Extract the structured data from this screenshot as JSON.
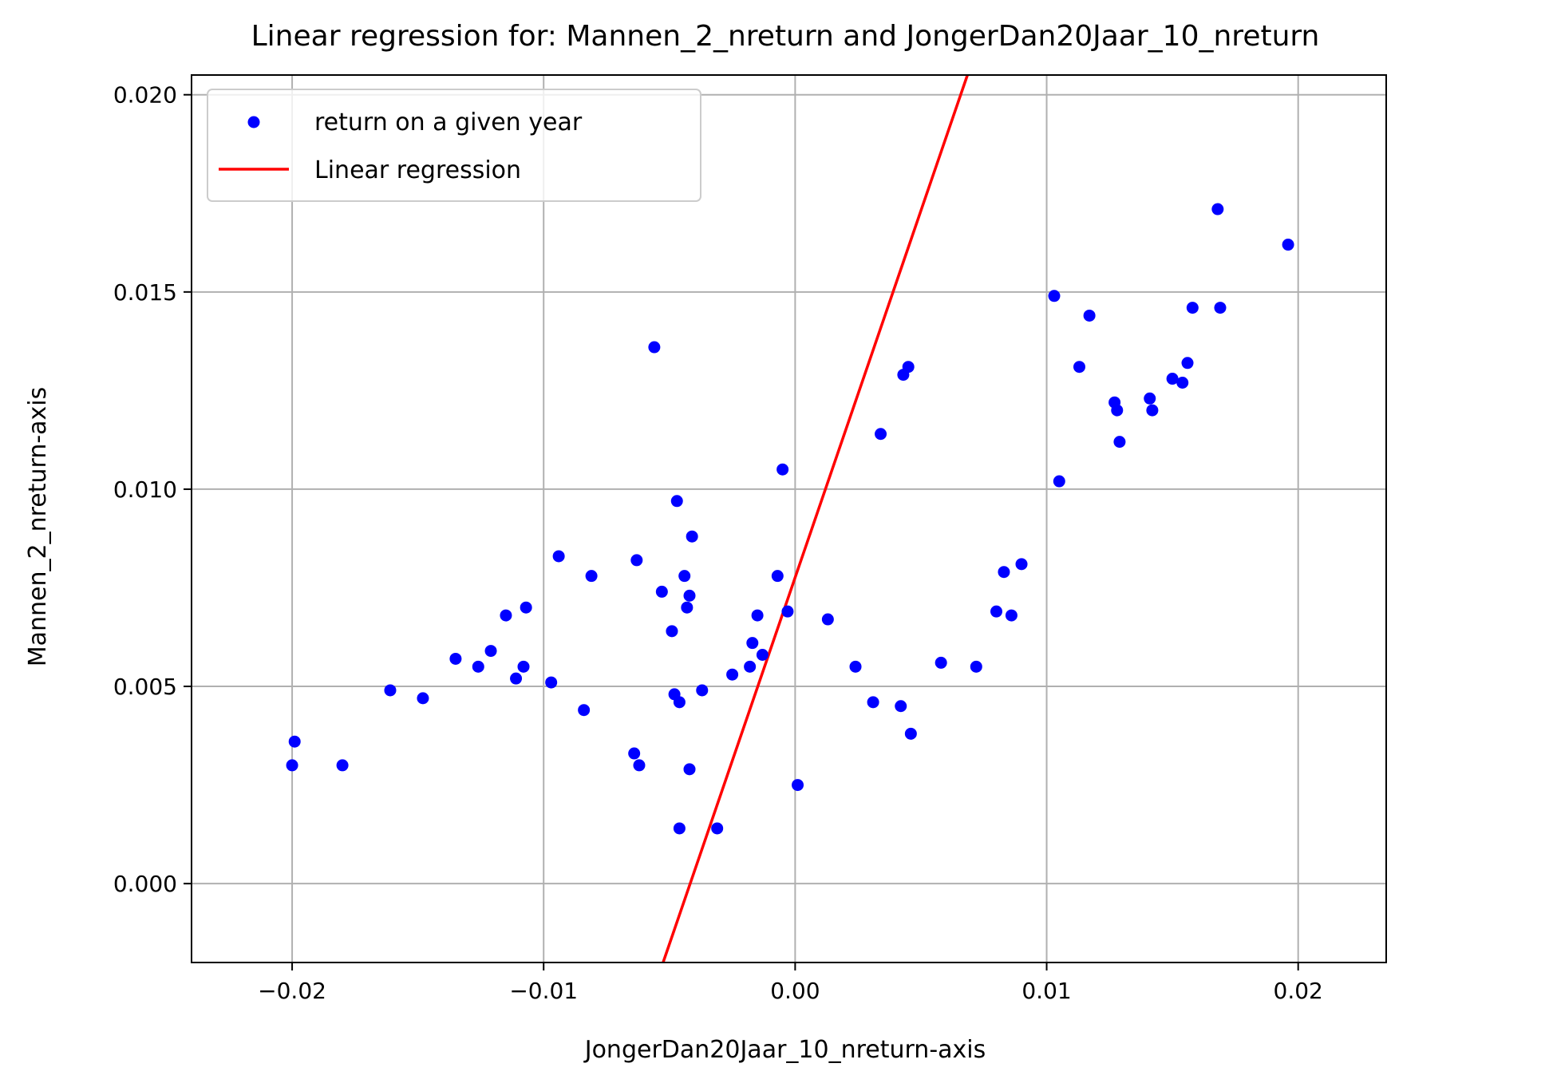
{
  "chart_data": {
    "type": "scatter",
    "title": "Linear regression for: Mannen_2_nreturn and JongerDan20Jaar_10_nreturn",
    "xlabel": "JongerDan20Jaar_10_nreturn-axis",
    "ylabel": "Mannen_2_nreturn-axis",
    "xlim": [
      -0.024,
      0.0235
    ],
    "ylim": [
      -0.002,
      0.0205
    ],
    "x_ticks": [
      -0.02,
      -0.01,
      0.0,
      0.01,
      0.02
    ],
    "x_tick_labels": [
      "−0.02",
      "−0.01",
      "0.00",
      "0.01",
      "0.02"
    ],
    "y_ticks": [
      0.0,
      0.005,
      0.01,
      0.015,
      0.02
    ],
    "y_tick_labels": [
      "0.000",
      "0.005",
      "0.010",
      "0.015",
      "0.020"
    ],
    "grid": true,
    "legend_position": "top-left",
    "series": [
      {
        "name": "return on a given year",
        "kind": "scatter",
        "color": "#0000ff",
        "points": [
          [
            -0.02,
            0.003
          ],
          [
            -0.0199,
            0.0036
          ],
          [
            -0.018,
            0.003
          ],
          [
            -0.0161,
            0.0049
          ],
          [
            -0.0148,
            0.0047
          ],
          [
            -0.0135,
            0.0057
          ],
          [
            -0.0126,
            0.0055
          ],
          [
            -0.0121,
            0.0059
          ],
          [
            -0.0115,
            0.0068
          ],
          [
            -0.0111,
            0.0052
          ],
          [
            -0.0108,
            0.0055
          ],
          [
            -0.0107,
            0.007
          ],
          [
            -0.0097,
            0.0051
          ],
          [
            -0.0094,
            0.0083
          ],
          [
            -0.0084,
            0.0044
          ],
          [
            -0.0081,
            0.0078
          ],
          [
            -0.0064,
            0.0033
          ],
          [
            -0.0063,
            0.0082
          ],
          [
            -0.0062,
            0.003
          ],
          [
            -0.0056,
            0.0136
          ],
          [
            -0.0053,
            0.0074
          ],
          [
            -0.0049,
            0.0064
          ],
          [
            -0.0048,
            0.0048
          ],
          [
            -0.0047,
            0.0097
          ],
          [
            -0.0046,
            0.0046
          ],
          [
            -0.0046,
            0.0014
          ],
          [
            -0.0044,
            0.0078
          ],
          [
            -0.0043,
            0.007
          ],
          [
            -0.0042,
            0.0029
          ],
          [
            -0.0042,
            0.0073
          ],
          [
            -0.0041,
            0.0088
          ],
          [
            -0.0037,
            0.0049
          ],
          [
            -0.0031,
            0.0014
          ],
          [
            -0.0025,
            0.0053
          ],
          [
            -0.0018,
            0.0055
          ],
          [
            -0.0017,
            0.0061
          ],
          [
            -0.0015,
            0.0068
          ],
          [
            -0.0013,
            0.0058
          ],
          [
            -0.0007,
            0.0078
          ],
          [
            -0.0005,
            0.0105
          ],
          [
            -0.0003,
            0.0069
          ],
          [
            0.0001,
            0.0025
          ],
          [
            0.0013,
            0.0067
          ],
          [
            0.0024,
            0.0055
          ],
          [
            0.0031,
            0.0046
          ],
          [
            0.0034,
            0.0114
          ],
          [
            0.0042,
            0.0045
          ],
          [
            0.0043,
            0.0129
          ],
          [
            0.0045,
            0.0131
          ],
          [
            0.0046,
            0.0038
          ],
          [
            0.0058,
            0.0056
          ],
          [
            0.0072,
            0.0055
          ],
          [
            0.008,
            0.0069
          ],
          [
            0.0083,
            0.0079
          ],
          [
            0.0086,
            0.0068
          ],
          [
            0.009,
            0.0081
          ],
          [
            0.0103,
            0.0149
          ],
          [
            0.0105,
            0.0102
          ],
          [
            0.0113,
            0.0131
          ],
          [
            0.0117,
            0.0144
          ],
          [
            0.0127,
            0.0122
          ],
          [
            0.0128,
            0.012
          ],
          [
            0.0129,
            0.0112
          ],
          [
            0.0141,
            0.0123
          ],
          [
            0.0142,
            0.012
          ],
          [
            0.015,
            0.0128
          ],
          [
            0.0154,
            0.0127
          ],
          [
            0.0156,
            0.0132
          ],
          [
            0.0158,
            0.0146
          ],
          [
            0.0168,
            0.0171
          ],
          [
            0.0169,
            0.0146
          ],
          [
            0.0196,
            0.0162
          ]
        ]
      },
      {
        "name": "Linear regression",
        "kind": "line",
        "color": "#ff0000",
        "x": [
          -0.00525,
          0.00685
        ],
        "y": [
          -0.002,
          0.0205
        ]
      }
    ]
  }
}
